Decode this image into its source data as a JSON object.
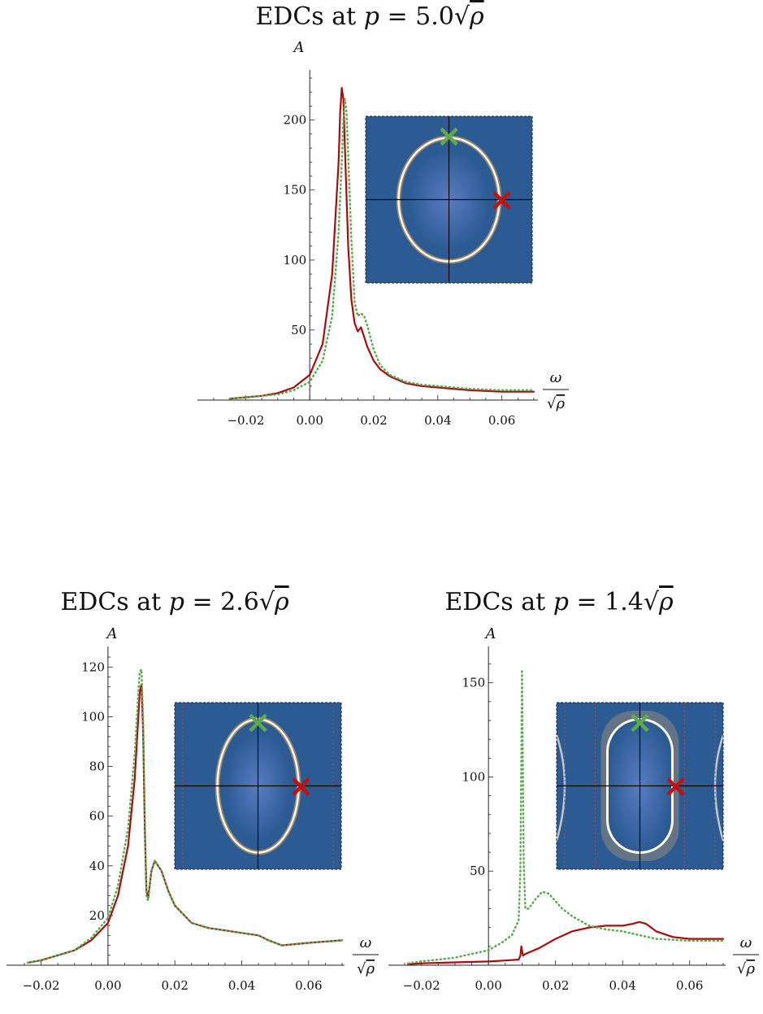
{
  "chart_data": [
    {
      "type": "line",
      "title_prefix": "EDCs at ",
      "title_var": "p",
      "title_eq": " = ",
      "title_num": "5.0",
      "title_sqrt": "ρ",
      "ylabel": "A",
      "xlabel_num": "ω",
      "xlabel_den": "ρ",
      "xlim": [
        -0.03,
        0.07
      ],
      "ylim": [
        0,
        230
      ],
      "x_ticks": [
        -0.02,
        0.0,
        0.02,
        0.04,
        0.06
      ],
      "x_tick_labels": [
        "−0.02",
        "0.00",
        "0.02",
        "0.04",
        "0.06"
      ],
      "y_ticks": [
        50,
        100,
        150,
        200
      ],
      "y_tick_labels": [
        "50",
        "100",
        "150",
        "200"
      ],
      "series": [
        {
          "color": "#a80c0c",
          "style": "solid",
          "x": [
            -0.025,
            -0.02,
            -0.015,
            -0.01,
            -0.005,
            0.0,
            0.004,
            0.007,
            0.009,
            0.0095,
            0.01,
            0.0105,
            0.011,
            0.012,
            0.013,
            0.014,
            0.015,
            0.016,
            0.017,
            0.018,
            0.02,
            0.022,
            0.025,
            0.03,
            0.035,
            0.04,
            0.05,
            0.06,
            0.07
          ],
          "y": [
            1,
            2,
            3,
            5,
            9,
            18,
            40,
            90,
            170,
            205,
            223,
            215,
            180,
            110,
            72,
            55,
            49,
            52,
            45,
            38,
            28,
            22,
            17,
            12,
            10,
            9,
            7,
            6,
            6
          ]
        },
        {
          "color": "#5aaa4f",
          "style": "dotted",
          "x": [
            -0.025,
            -0.02,
            -0.015,
            -0.01,
            -0.005,
            0.0,
            0.004,
            0.007,
            0.009,
            0.01,
            0.0105,
            0.011,
            0.0115,
            0.012,
            0.013,
            0.014,
            0.015,
            0.016,
            0.017,
            0.018,
            0.019,
            0.02,
            0.022,
            0.025,
            0.03,
            0.035,
            0.04,
            0.05,
            0.06,
            0.07
          ],
          "y": [
            1,
            2,
            3,
            4,
            7,
            13,
            28,
            60,
            120,
            170,
            200,
            215,
            205,
            175,
            115,
            70,
            60,
            62,
            60,
            53,
            44,
            36,
            25,
            18,
            13,
            11,
            10,
            8,
            7,
            7
          ]
        }
      ],
      "inset": {
        "background": "#2c5b94",
        "ring_color": "#fff7e6",
        "markers": [
          {
            "color": "#5aaa4f",
            "symbol": "×"
          },
          {
            "color": "#c01010",
            "symbol": "×"
          }
        ]
      }
    },
    {
      "type": "line",
      "title_prefix": "EDCs at ",
      "title_var": "p",
      "title_eq": " = ",
      "title_num": "2.6",
      "title_sqrt": "ρ",
      "ylabel": "A",
      "xlabel_num": "ω",
      "xlabel_den": "ρ",
      "xlim": [
        -0.025,
        0.07
      ],
      "ylim": [
        0,
        125
      ],
      "x_ticks": [
        -0.02,
        0.0,
        0.02,
        0.04,
        0.06
      ],
      "x_tick_labels": [
        "−0.02",
        "0.00",
        "0.02",
        "0.04",
        "0.06"
      ],
      "y_ticks": [
        20,
        40,
        60,
        80,
        100,
        120
      ],
      "y_tick_labels": [
        "20",
        "40",
        "60",
        "80",
        "100",
        "120"
      ],
      "series": [
        {
          "color": "#a80c0c",
          "style": "solid",
          "x": [
            -0.024,
            -0.02,
            -0.015,
            -0.01,
            -0.005,
            0.0,
            0.003,
            0.006,
            0.008,
            0.009,
            0.0095,
            0.01,
            0.0105,
            0.011,
            0.0115,
            0.012,
            0.013,
            0.014,
            0.016,
            0.018,
            0.02,
            0.025,
            0.03,
            0.035,
            0.04,
            0.045,
            0.048,
            0.052,
            0.06,
            0.07
          ],
          "y": [
            1,
            2,
            4,
            6,
            10,
            17,
            28,
            48,
            75,
            98,
            110,
            113,
            95,
            55,
            30,
            27,
            38,
            42,
            38,
            30,
            24,
            17,
            15,
            14,
            13,
            12,
            10,
            8,
            9,
            10
          ]
        },
        {
          "color": "#5aaa4f",
          "style": "dotted",
          "x": [
            -0.024,
            -0.02,
            -0.015,
            -0.01,
            -0.005,
            0.0,
            0.003,
            0.006,
            0.008,
            0.009,
            0.0095,
            0.01,
            0.0105,
            0.011,
            0.0115,
            0.012,
            0.013,
            0.014,
            0.016,
            0.018,
            0.02,
            0.025,
            0.03,
            0.035,
            0.04,
            0.045,
            0.048,
            0.052,
            0.06,
            0.07
          ],
          "y": [
            1,
            2,
            4,
            6,
            11,
            19,
            32,
            55,
            85,
            108,
            118,
            119,
            100,
            60,
            28,
            26,
            38,
            42,
            38,
            30,
            24,
            17,
            15,
            14,
            13,
            12,
            10,
            8,
            9,
            10
          ]
        }
      ],
      "inset": {
        "background": "#2c5b94",
        "ring_color": "#fff7e6",
        "markers": [
          {
            "color": "#5aaa4f",
            "symbol": "×"
          },
          {
            "color": "#c01010",
            "symbol": "×"
          }
        ]
      }
    },
    {
      "type": "line",
      "title_prefix": "EDCs at ",
      "title_var": "p",
      "title_eq": " = ",
      "title_num": "1.4",
      "title_sqrt": "ρ",
      "ylabel": "A",
      "xlabel_num": "ω",
      "xlabel_den": "ρ",
      "xlim": [
        -0.025,
        0.07
      ],
      "ylim": [
        0,
        165
      ],
      "x_ticks": [
        -0.02,
        0.0,
        0.02,
        0.04,
        0.06
      ],
      "x_tick_labels": [
        "−0.02",
        "0.00",
        "0.02",
        "0.04",
        "0.06"
      ],
      "y_ticks": [
        50,
        100,
        150
      ],
      "y_tick_labels": [
        "50",
        "100",
        "150"
      ],
      "series": [
        {
          "color": "#a80c0c",
          "style": "solid",
          "x": [
            -0.024,
            -0.02,
            -0.01,
            0.0,
            0.005,
            0.009,
            0.0095,
            0.0098,
            0.01,
            0.0103,
            0.011,
            0.015,
            0.02,
            0.025,
            0.03,
            0.035,
            0.04,
            0.043,
            0.045,
            0.047,
            0.05,
            0.055,
            0.06,
            0.07
          ],
          "y": [
            0.5,
            1,
            1.5,
            2,
            2.5,
            3,
            5,
            10,
            8,
            5,
            6,
            9,
            14,
            18,
            20,
            21,
            21,
            22,
            23,
            22,
            18,
            15,
            14,
            14
          ]
        },
        {
          "color": "#5aaa4f",
          "style": "dotted",
          "x": [
            -0.024,
            -0.02,
            -0.015,
            -0.01,
            -0.005,
            0.0,
            0.004,
            0.007,
            0.009,
            0.0095,
            0.0098,
            0.01,
            0.0102,
            0.0105,
            0.011,
            0.012,
            0.014,
            0.016,
            0.018,
            0.02,
            0.022,
            0.025,
            0.03,
            0.035,
            0.04,
            0.045,
            0.05,
            0.06,
            0.07
          ],
          "y": [
            1,
            2,
            3,
            4,
            6,
            8,
            12,
            16,
            24,
            50,
            110,
            157,
            120,
            55,
            30,
            30,
            35,
            39,
            38,
            34,
            30,
            26,
            21,
            19,
            18,
            16,
            14,
            13,
            13
          ]
        }
      ],
      "inset": {
        "background": "#2c5b94",
        "ring_color": "#fff7e6",
        "markers": [
          {
            "color": "#5aaa4f",
            "symbol": "×"
          },
          {
            "color": "#c01010",
            "symbol": "×"
          }
        ]
      }
    }
  ]
}
